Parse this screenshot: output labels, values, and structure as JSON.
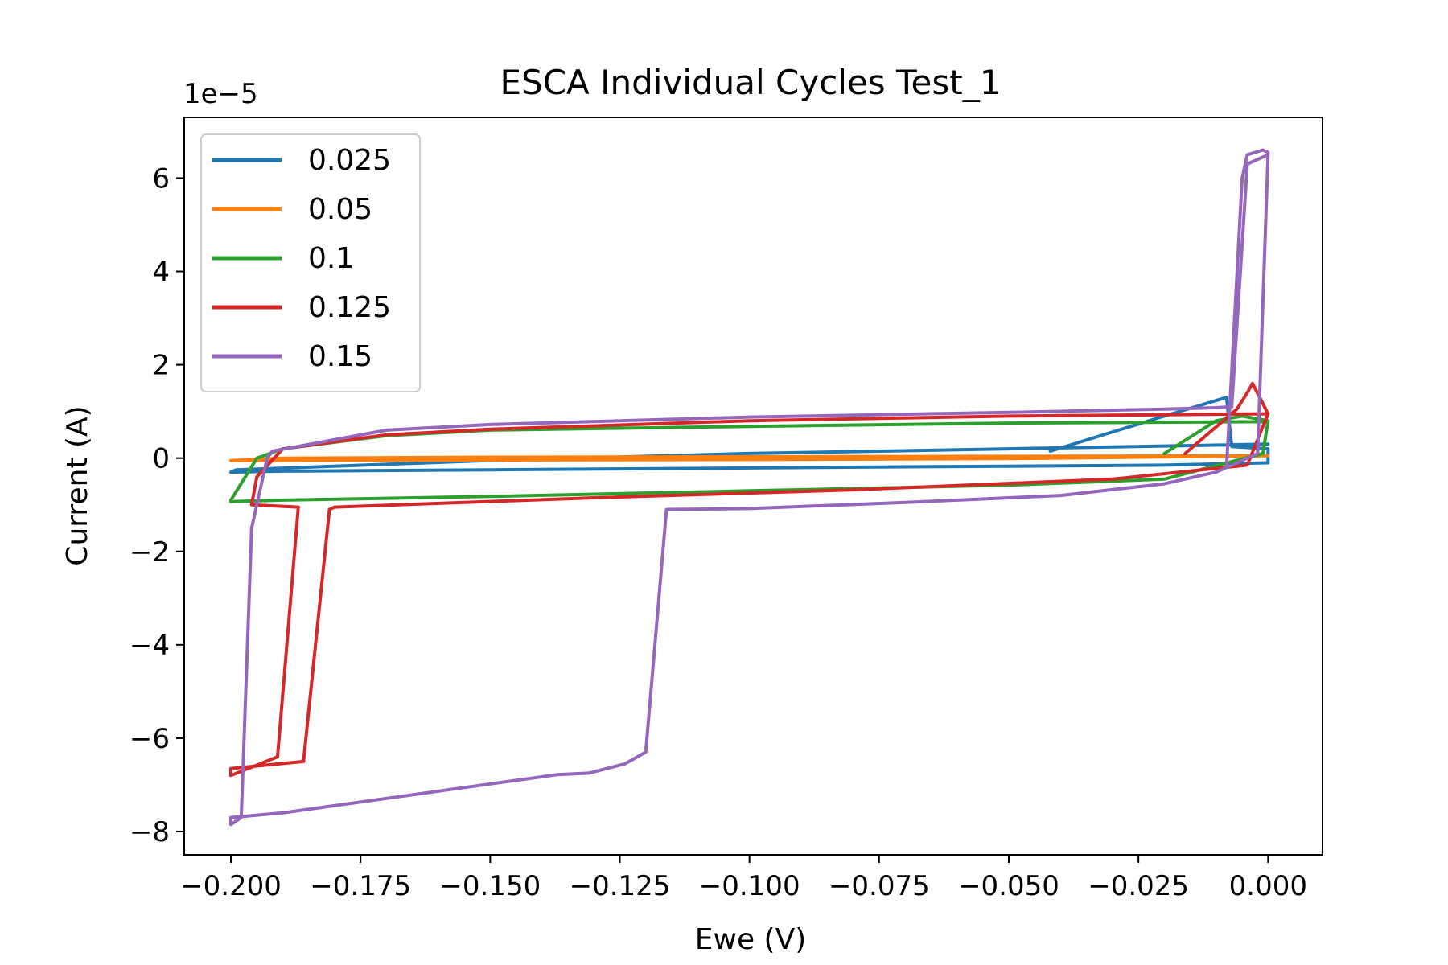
{
  "chart_data": {
    "type": "line",
    "title": "ESCA Individual Cycles Test_1",
    "xlabel": "Ewe (V)",
    "ylabel": "Current (A)",
    "y_offset_text": "1e−5",
    "y_scale": 1e-05,
    "xlim": [
      -0.209,
      0.0105
    ],
    "ylim": [
      -8.5,
      7.3
    ],
    "x_ticks": [
      -0.2,
      -0.175,
      -0.15,
      -0.125,
      -0.1,
      -0.075,
      -0.05,
      -0.025,
      0.0
    ],
    "x_tick_labels": [
      "−0.200",
      "−0.175",
      "−0.150",
      "−0.125",
      "−0.100",
      "−0.075",
      "−0.050",
      "−0.025",
      "0.000"
    ],
    "y_ticks": [
      -8,
      -6,
      -4,
      -2,
      0,
      2,
      4,
      6
    ],
    "y_tick_labels": [
      "−8",
      "−6",
      "−4",
      "−2",
      "0",
      "2",
      "4",
      "6"
    ],
    "grid": false,
    "legend_position": "upper-left",
    "series": [
      {
        "name": "0.025",
        "color": "#1f77b4",
        "x": [
          -0.042,
          -0.02,
          -0.008,
          -0.007,
          0.0,
          0.0,
          -0.02,
          -0.06,
          -0.1,
          -0.15,
          -0.19,
          -0.2,
          -0.199,
          -0.15,
          -0.1,
          -0.05,
          0.0
        ],
        "y": [
          0.15,
          0.9,
          1.3,
          0.25,
          0.2,
          -0.1,
          -0.15,
          -0.18,
          -0.21,
          -0.25,
          -0.28,
          -0.3,
          -0.25,
          -0.05,
          0.1,
          0.2,
          0.3
        ]
      },
      {
        "name": "0.05",
        "color": "#ff7f0e",
        "x": [
          -0.2,
          -0.19,
          -0.15,
          -0.1,
          -0.05,
          0.0,
          0.0,
          -0.05,
          -0.1,
          -0.15,
          -0.2
        ],
        "y": [
          -0.05,
          0.0,
          0.02,
          0.03,
          0.04,
          0.05,
          0.05,
          -0.01,
          -0.03,
          -0.04,
          -0.05
        ]
      },
      {
        "name": "0.1",
        "color": "#2ca02c",
        "x": [
          -0.02,
          -0.01,
          -0.005,
          0.0,
          -0.001,
          -0.02,
          -0.05,
          -0.1,
          -0.15,
          -0.19,
          -0.2,
          -0.2,
          -0.195,
          -0.19,
          -0.17,
          -0.15,
          -0.1,
          -0.05,
          0.0
        ],
        "y": [
          0.1,
          0.8,
          0.9,
          0.8,
          0.1,
          -0.45,
          -0.58,
          -0.7,
          -0.82,
          -0.9,
          -0.93,
          -0.9,
          0.0,
          0.2,
          0.48,
          0.6,
          0.68,
          0.75,
          0.78
        ]
      },
      {
        "name": "0.125",
        "color": "#d62728",
        "x": [
          -0.016,
          -0.006,
          -0.004,
          -0.003,
          0.0,
          -0.004,
          -0.03,
          -0.08,
          -0.13,
          -0.18,
          -0.181,
          -0.186,
          -0.2,
          -0.2,
          -0.191,
          -0.187,
          -0.196,
          -0.195,
          -0.19,
          -0.17,
          -0.15,
          -0.1,
          -0.05,
          -0.02,
          0.0
        ],
        "y": [
          0.1,
          1.05,
          1.4,
          1.6,
          0.95,
          -0.15,
          -0.45,
          -0.68,
          -0.85,
          -1.05,
          -1.1,
          -6.5,
          -6.65,
          -6.8,
          -6.4,
          -1.05,
          -1.0,
          -0.4,
          0.2,
          0.5,
          0.62,
          0.8,
          0.9,
          0.93,
          0.95
        ]
      },
      {
        "name": "0.15",
        "color": "#9467bd",
        "x": [
          -0.008,
          -0.005,
          -0.004,
          -0.001,
          0.0,
          0.0,
          -0.002,
          -0.006,
          -0.01,
          -0.02,
          -0.04,
          -0.07,
          -0.1,
          -0.116,
          -0.12,
          -0.124,
          -0.131,
          -0.137,
          -0.19,
          -0.2,
          -0.2,
          -0.198,
          -0.196,
          -0.193,
          -0.192,
          -0.17,
          -0.15,
          -0.1,
          -0.05,
          -0.02,
          -0.01,
          -0.007,
          -0.004,
          -0.001,
          0.0
        ],
        "y": [
          -0.2,
          6.0,
          6.5,
          6.6,
          6.55,
          6.5,
          0.1,
          -0.1,
          -0.3,
          -0.55,
          -0.8,
          -0.95,
          -1.08,
          -1.1,
          -6.3,
          -6.55,
          -6.75,
          -6.78,
          -7.6,
          -7.7,
          -7.85,
          -7.7,
          -1.5,
          0.0,
          0.15,
          0.6,
          0.72,
          0.88,
          0.98,
          1.05,
          1.08,
          1.1,
          6.3,
          6.45,
          6.5
        ]
      }
    ]
  }
}
